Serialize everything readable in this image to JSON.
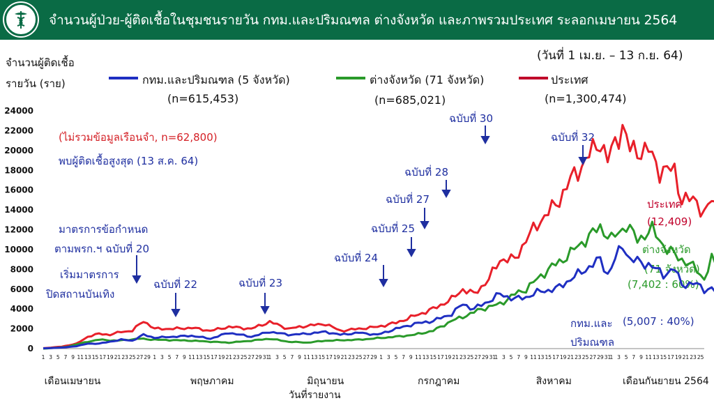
{
  "header": {
    "title": "จำนวนผู้ป่วย-ผู้ติดเชื้อในชุมชนรายวัน กทม.และปริมณฑล ต่างจังหวัด และภาพรวมประเทศ ระลอกเมษายน 2564",
    "logo_icon": "ministry-of-health-caduceus-icon"
  },
  "date_range": "(วันที่ 1 เม.ย. – 13 ก.ย. 64)",
  "colors": {
    "header": "#0a6b45",
    "bangkok": "#1f2fc2",
    "provinces": "#2a9a2a",
    "nation": "#e8202a",
    "annotation_red": "#d42026",
    "annotation_blue": "#1f2fa0",
    "nation_label": "#c0002a"
  },
  "chart_data": {
    "type": "line",
    "ylabel_line1": "จำนวนผู้ติดเชื้อ",
    "ylabel_line2": "รายวัน (ราย)",
    "xlabel": "วันที่รายงาน",
    "ylim": [
      0,
      24000
    ],
    "yticks": [
      0,
      2000,
      4000,
      6000,
      8000,
      10000,
      12000,
      14000,
      16000,
      18000,
      20000,
      22000,
      24000
    ],
    "months": [
      {
        "label": "เดือนเมษายน",
        "days": 30
      },
      {
        "label": "พฤษภาคม",
        "days": 31
      },
      {
        "label": "มิถุนายน",
        "days": 30
      },
      {
        "label": "กรกฎาคม",
        "days": 31
      },
      {
        "label": "สิงหาคม",
        "days": 31
      },
      {
        "label": "เดือนกันยายน 2564",
        "days": 26
      }
    ],
    "x_tick_days_odd_label": true,
    "series": [
      {
        "key": "nation",
        "name": "ประเทศ",
        "n_label": "(n=1,300,474)",
        "anchors": [
          [
            0,
            40
          ],
          [
            5,
            200
          ],
          [
            9,
            500
          ],
          [
            12,
            1200
          ],
          [
            15,
            1500
          ],
          [
            18,
            1400
          ],
          [
            21,
            1700
          ],
          [
            24,
            1800
          ],
          [
            27,
            2800
          ],
          [
            30,
            2000
          ],
          [
            35,
            2000
          ],
          [
            40,
            2100
          ],
          [
            45,
            1800
          ],
          [
            50,
            2200
          ],
          [
            56,
            2000
          ],
          [
            61,
            2700
          ],
          [
            66,
            2000
          ],
          [
            71,
            2300
          ],
          [
            76,
            2500
          ],
          [
            80,
            1800
          ],
          [
            85,
            2000
          ],
          [
            90,
            2200
          ],
          [
            95,
            2600
          ],
          [
            100,
            3300
          ],
          [
            105,
            4000
          ],
          [
            110,
            5000
          ],
          [
            113,
            6000
          ],
          [
            116,
            5500
          ],
          [
            120,
            7000
          ],
          [
            123,
            9000
          ],
          [
            127,
            9000
          ],
          [
            130,
            11000
          ],
          [
            134,
            13000
          ],
          [
            138,
            14500
          ],
          [
            142,
            17000
          ],
          [
            145,
            18500
          ],
          [
            150,
            21000
          ],
          [
            152,
            19000
          ],
          [
            156,
            22500
          ],
          [
            158,
            20000
          ],
          [
            163,
            20000
          ],
          [
            166,
            18000
          ],
          [
            170,
            18000
          ],
          [
            172,
            15000
          ],
          [
            176,
            15000
          ],
          [
            178,
            13500
          ],
          [
            180,
            15000
          ],
          [
            182,
            14000
          ],
          [
            183,
            12400
          ]
        ],
        "final_label": "ประเทศ",
        "final_value_label": "(12,409)"
      },
      {
        "key": "provinces",
        "name": "ต่างจังหวัด (71 จังหวัด)",
        "n_label": "(n=685,021)",
        "anchors": [
          [
            0,
            0
          ],
          [
            6,
            150
          ],
          [
            12,
            700
          ],
          [
            15,
            900
          ],
          [
            20,
            800
          ],
          [
            26,
            1000
          ],
          [
            30,
            900
          ],
          [
            40,
            800
          ],
          [
            50,
            600
          ],
          [
            56,
            800
          ],
          [
            61,
            1000
          ],
          [
            66,
            700
          ],
          [
            71,
            600
          ],
          [
            76,
            800
          ],
          [
            85,
            900
          ],
          [
            95,
            1200
          ],
          [
            100,
            1400
          ],
          [
            105,
            1800
          ],
          [
            110,
            2800
          ],
          [
            115,
            3500
          ],
          [
            118,
            4000
          ],
          [
            123,
            4500
          ],
          [
            127,
            5500
          ],
          [
            130,
            6000
          ],
          [
            136,
            8000
          ],
          [
            140,
            9000
          ],
          [
            146,
            11000
          ],
          [
            150,
            12300
          ],
          [
            153,
            11000
          ],
          [
            157,
            12500
          ],
          [
            160,
            11000
          ],
          [
            164,
            12000
          ],
          [
            168,
            10000
          ],
          [
            172,
            9000
          ],
          [
            176,
            8000
          ],
          [
            178,
            7000
          ],
          [
            180,
            9000
          ],
          [
            182,
            8000
          ],
          [
            183,
            7402
          ]
        ],
        "final_label_line1": "ต่างจังหวัด",
        "final_label_line2": "(71 จังหวัด)",
        "final_value_label": "(7,402 : 60%)"
      },
      {
        "key": "bangkok",
        "name": "กทม.และปริมณฑล (5 จังหวัด)",
        "n_label": "(n=615,453)",
        "anchors": [
          [
            0,
            30
          ],
          [
            5,
            100
          ],
          [
            9,
            250
          ],
          [
            12,
            500
          ],
          [
            15,
            500
          ],
          [
            18,
            700
          ],
          [
            21,
            900
          ],
          [
            24,
            800
          ],
          [
            27,
            1400
          ],
          [
            30,
            1100
          ],
          [
            35,
            1200
          ],
          [
            40,
            1300
          ],
          [
            45,
            1000
          ],
          [
            50,
            1600
          ],
          [
            56,
            1200
          ],
          [
            61,
            1700
          ],
          [
            66,
            1400
          ],
          [
            71,
            1500
          ],
          [
            76,
            1700
          ],
          [
            80,
            1400
          ],
          [
            85,
            1600
          ],
          [
            90,
            1400
          ],
          [
            95,
            2000
          ],
          [
            100,
            2500
          ],
          [
            105,
            2800
          ],
          [
            110,
            3500
          ],
          [
            113,
            4500
          ],
          [
            116,
            4000
          ],
          [
            120,
            4800
          ],
          [
            123,
            5500
          ],
          [
            127,
            5000
          ],
          [
            130,
            5200
          ],
          [
            134,
            5800
          ],
          [
            138,
            6000
          ],
          [
            142,
            7000
          ],
          [
            146,
            8000
          ],
          [
            150,
            9000
          ],
          [
            152,
            7500
          ],
          [
            156,
            10500
          ],
          [
            158,
            9000
          ],
          [
            163,
            8500
          ],
          [
            167,
            7500
          ],
          [
            170,
            8000
          ],
          [
            172,
            6500
          ],
          [
            176,
            6500
          ],
          [
            178,
            6000
          ],
          [
            180,
            6000
          ],
          [
            182,
            5500
          ],
          [
            183,
            5007
          ]
        ],
        "final_label_line1": "กทม.และ",
        "final_label_line2": "ปริมณฑล",
        "final_value_label": "(5,007 : 40%)"
      }
    ]
  },
  "legend": {
    "nation": "ประเทศ",
    "bangkok": "กทม.และปริมณฑล (5 จังหวัด)",
    "provinces": "ต่างจังหวัด (71 จังหวัด)"
  },
  "notes": {
    "prison_excluded": "(ไม่รวมข้อมูลเรือนจำ, n=62,800)",
    "peak": "พบผู้ติดเชื้อสูงสุด (13 ส.ค. 64)",
    "measure_line1": "มาตรการข้อกำหนด",
    "measure_line2": "ตามพรก.ฯ ฉบับที่ 20",
    "entertainment_line1": "เริ่มมาตรการ",
    "entertainment_line2": "ปิดสถานบันเทิง"
  },
  "annotations": [
    {
      "label": "ฉบับที่ 22",
      "day": 57
    },
    {
      "label": "ฉบับที่ 23",
      "day": 92
    },
    {
      "label": "ฉบับที่ 24",
      "day": 0
    },
    {
      "label": "ฉบับที่ 25",
      "day": 0
    },
    {
      "label": "ฉบับที่ 27",
      "day": 0
    },
    {
      "label": "ฉบับที่ 28",
      "day": 0
    },
    {
      "label": "ฉบับที่ 30",
      "day": 0
    },
    {
      "label": "ฉบับที่ 32",
      "day": 0
    }
  ]
}
